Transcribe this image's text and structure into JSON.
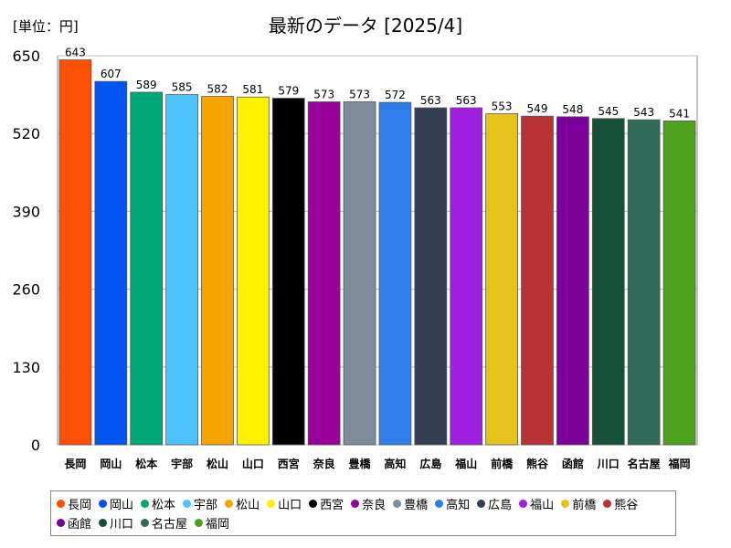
{
  "unit_label": "[単位：円]",
  "chart_data": {
    "type": "bar",
    "title": "最新のデータ [2025/4]",
    "xlabel": "",
    "ylabel": "",
    "ylim": [
      0,
      650
    ],
    "yticks": [
      0,
      130,
      260,
      390,
      520,
      650
    ],
    "grid": true,
    "legend_position": "bottom",
    "categories": [
      "長岡",
      "岡山",
      "松本",
      "宇部",
      "松山",
      "山口",
      "西宮",
      "奈良",
      "豊橋",
      "高知",
      "広島",
      "福山",
      "前橋",
      "熊谷",
      "函館",
      "川口",
      "名古屋",
      "福岡"
    ],
    "values": [
      643,
      607,
      589,
      585,
      582,
      581,
      579,
      573,
      573,
      572,
      563,
      563,
      553,
      549,
      548,
      545,
      543,
      541
    ],
    "colors": [
      "#ff4f00",
      "#0055ee",
      "#00a878",
      "#4fc3ff",
      "#f5a500",
      "#fff200",
      "#000000",
      "#990099",
      "#7f8c99",
      "#2f7de8",
      "#333d52",
      "#a020e0",
      "#e5c31a",
      "#b83236",
      "#7a0099",
      "#175038",
      "#2f6b58",
      "#4ea11c"
    ]
  }
}
